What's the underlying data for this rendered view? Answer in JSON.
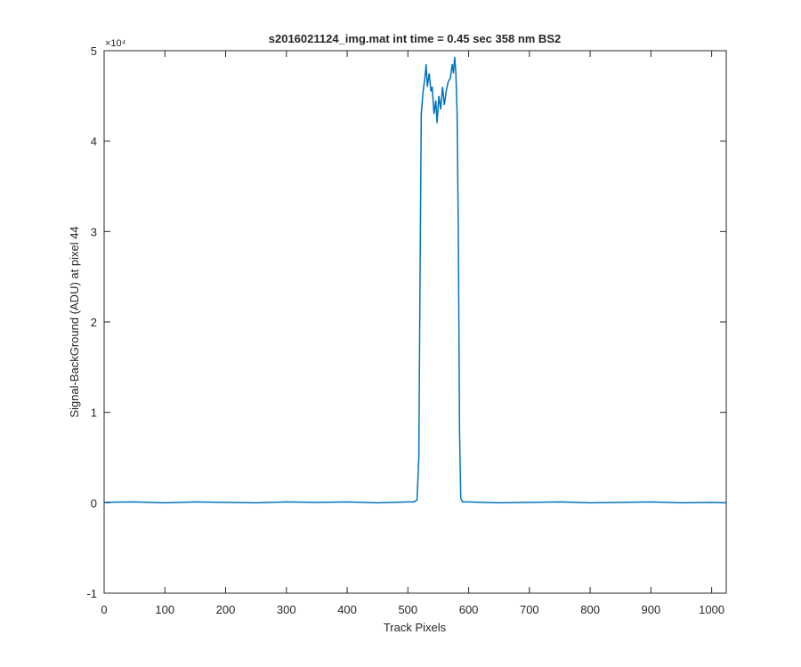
{
  "chart_data": {
    "type": "line",
    "title": "s2016021124_img.mat int time = 0.45 sec  358 nm BS2",
    "x_label": "Track Pixels",
    "y_label": "Signal-BackGround (ADU) at pixel 44",
    "y_multiplier": "×10⁴",
    "xlim": [
      0,
      1024
    ],
    "xticks": [
      0,
      100,
      200,
      300,
      400,
      500,
      600,
      700,
      800,
      900,
      1000
    ],
    "ylim": [
      -1,
      5
    ],
    "yticks": [
      -1,
      0,
      1,
      2,
      3,
      4,
      5
    ],
    "series": [
      {
        "color": "#0072bd",
        "x": [
          0,
          50,
          100,
          150,
          200,
          250,
          300,
          350,
          400,
          450,
          500,
          510,
          515,
          518,
          520,
          522,
          525,
          528,
          530,
          532,
          535,
          538,
          540,
          543,
          546,
          548,
          551,
          554,
          557,
          560,
          563,
          566,
          570,
          573,
          575,
          577,
          579,
          581,
          583,
          585,
          587,
          590,
          600,
          650,
          700,
          750,
          800,
          850,
          900,
          950,
          1000,
          1024
        ],
        "values": [
          0.005,
          0.01,
          0.0,
          0.01,
          0.005,
          0.0,
          0.01,
          0.005,
          0.01,
          0.0,
          0.01,
          0.01,
          0.03,
          0.5,
          2.5,
          4.3,
          4.55,
          4.7,
          4.85,
          4.6,
          4.75,
          4.55,
          4.6,
          4.3,
          4.45,
          4.2,
          4.5,
          4.35,
          4.6,
          4.4,
          4.55,
          4.65,
          4.7,
          4.85,
          4.75,
          4.93,
          4.75,
          4.3,
          3.0,
          0.8,
          0.05,
          0.01,
          0.01,
          0.0,
          0.005,
          0.01,
          0.0,
          0.005,
          0.01,
          0.0,
          0.005,
          0.0
        ]
      }
    ]
  }
}
